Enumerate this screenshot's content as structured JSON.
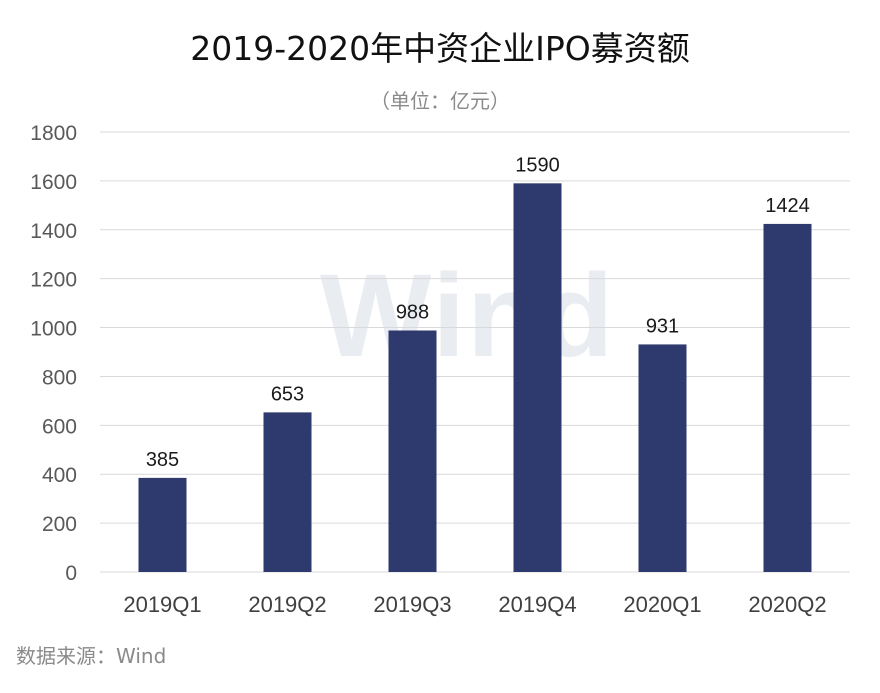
{
  "chart_data": {
    "type": "bar",
    "title": "2019-2020年中资企业IPO募资额",
    "subtitle": "（单位：亿元）",
    "categories": [
      "2019Q1",
      "2019Q2",
      "2019Q3",
      "2019Q4",
      "2020Q1",
      "2020Q2"
    ],
    "values": [
      385,
      653,
      988,
      1590,
      931,
      1424
    ],
    "ylim": [
      0,
      1800
    ],
    "yticks": [
      0,
      200,
      400,
      600,
      800,
      1000,
      1200,
      1400,
      1600,
      1800
    ],
    "grid": true,
    "bar_color": "#2e3a6e",
    "grid_color": "#d9d9d9"
  },
  "watermark": "Wind",
  "source": "数据来源：Wind"
}
